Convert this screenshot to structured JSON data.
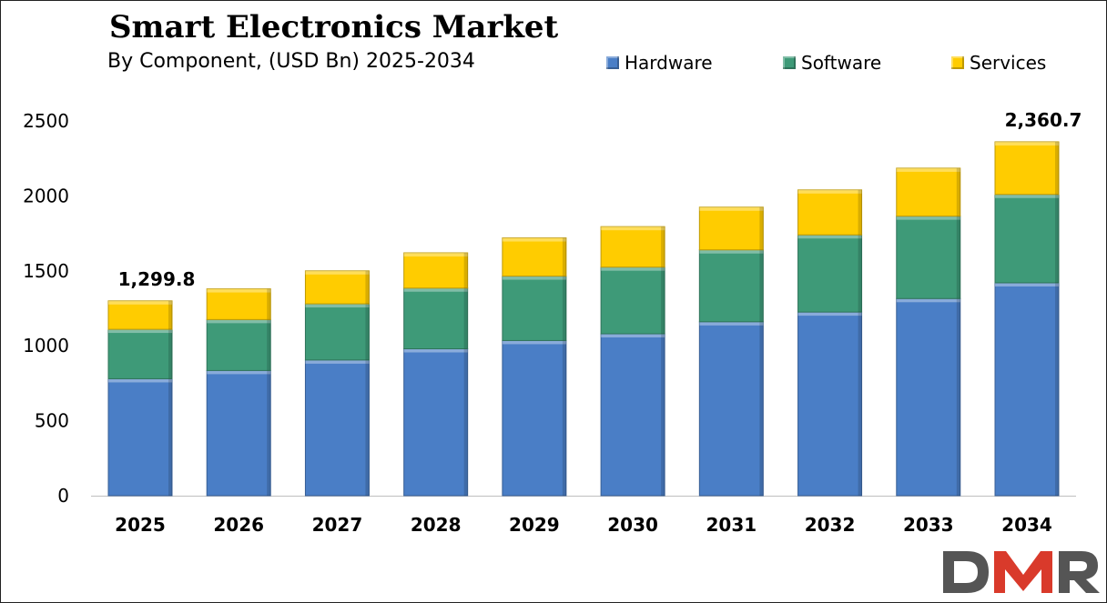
{
  "chart_data": {
    "type": "bar",
    "stacked": true,
    "title": "Smart Electronics Market",
    "subtitle": "By Component, (USD Bn) 2025-2034",
    "categories": [
      "2025",
      "2026",
      "2027",
      "2028",
      "2029",
      "2030",
      "2031",
      "2032",
      "2033",
      "2034"
    ],
    "series": [
      {
        "name": "Hardware",
        "color": "#4a7ec6",
        "values": [
          780,
          835,
          905,
          980,
          1035,
          1080,
          1160,
          1225,
          1315,
          1420
        ]
      },
      {
        "name": "Software",
        "color": "#3e9a78",
        "values": [
          330,
          340,
          375,
          405,
          430,
          445,
          480,
          515,
          550,
          590
        ]
      },
      {
        "name": "Services",
        "color": "#ffcc00",
        "values": [
          189.8,
          205,
          220,
          235,
          255,
          270,
          285,
          300,
          320,
          350.7
        ]
      }
    ],
    "ylim": [
      0,
      2500
    ],
    "yticks": [
      0,
      500,
      1000,
      1500,
      2000,
      2500
    ],
    "data_labels": [
      {
        "category": "2025",
        "text": "1,299.8"
      },
      {
        "category": "2034",
        "text": "2,360.7"
      }
    ],
    "legend_position": "top-right",
    "grid": false
  },
  "logo": {
    "text": "DMR",
    "color_d": "#555555",
    "color_m": "#d93a2b",
    "color_r": "#555555"
  }
}
